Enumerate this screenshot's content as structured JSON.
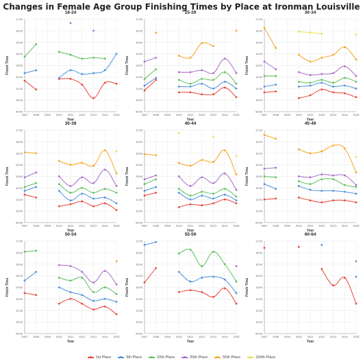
{
  "title": "Changes in Female Age Group Finishing Times by Place at Ironman Louisville",
  "colors": {
    "1st Place": "#e8443a",
    "5th Place": "#4a90d9",
    "10th Place": "#5cbf5c",
    "20th Place": "#a86cc8",
    "50th Place": "#f5a623",
    "100th Place": "#f0e04a"
  },
  "chart_data": [
    {
      "type": "line",
      "title": "18-24",
      "xlabel": "Year",
      "ylabel": "Finish Time",
      "xlim": [
        2007,
        2015
      ],
      "ylim": [
        "09:00",
        "17:00"
      ],
      "x": [
        2007,
        2008,
        2009,
        2010,
        2011,
        2012,
        2013,
        2014,
        2015
      ],
      "yticks": [
        "09:00",
        "10:00",
        "11:00",
        "12:00",
        "13:00",
        "14:00",
        "15:00",
        "16:00",
        "17:00"
      ],
      "series": [
        {
          "name": "1st Place",
          "values": [
            "11:40",
            "10:55",
            null,
            "11:50",
            "11:50",
            "11:20",
            "10:10",
            "11:30",
            "11:25"
          ]
        },
        {
          "name": "5th Place",
          "values": [
            "12:20",
            "12:35",
            null,
            "11:55",
            "12:35",
            "12:15",
            "12:20",
            "12:35",
            "14:00"
          ]
        },
        {
          "name": "10th Place",
          "values": [
            "13:45",
            "14:50",
            null,
            "14:10",
            "13:55",
            "13:35",
            "13:40",
            "13:35",
            null
          ]
        },
        {
          "name": "20th Place",
          "values": [
            null,
            null,
            null,
            null,
            "16:40",
            null,
            "16:00",
            null,
            null
          ]
        },
        {
          "name": "50th Place",
          "values": [
            null,
            null,
            null,
            null,
            null,
            null,
            null,
            null,
            null
          ]
        },
        {
          "name": "100th Place",
          "values": [
            null,
            null,
            null,
            null,
            null,
            null,
            null,
            null,
            null
          ]
        }
      ]
    },
    {
      "type": "line",
      "title": "25-29",
      "xlabel": "Year",
      "ylabel": "Finish Time",
      "xlim": [
        2007,
        2015
      ],
      "ylim": [
        "09:00",
        "17:00"
      ],
      "x": [
        2007,
        2008,
        2009,
        2010,
        2011,
        2012,
        2013,
        2014,
        2015
      ],
      "yticks": [
        "09:00",
        "10:00",
        "11:00",
        "12:00",
        "13:00",
        "14:00",
        "15:00",
        "16:00",
        "17:00"
      ],
      "series": [
        {
          "name": "1st Place",
          "values": [
            "10:50",
            "11:45",
            null,
            "10:40",
            "10:40",
            "10:30",
            "10:30",
            "11:05",
            "10:15"
          ]
        },
        {
          "name": "5th Place",
          "values": [
            "11:15",
            "11:55",
            null,
            "11:10",
            "11:10",
            "11:25",
            "11:00",
            "11:35",
            "11:00"
          ]
        },
        {
          "name": "10th Place",
          "values": [
            "11:50",
            "12:40",
            null,
            "11:45",
            "11:25",
            "11:50",
            "11:45",
            "12:25",
            "11:25"
          ]
        },
        {
          "name": "20th Place",
          "values": [
            "13:20",
            "13:40",
            null,
            "12:25",
            "12:25",
            "12:35",
            "12:20",
            "13:35",
            "12:20"
          ]
        },
        {
          "name": "50th Place",
          "values": [
            null,
            "15:50",
            null,
            "13:50",
            "13:40",
            "14:55",
            "14:40",
            null,
            "16:00"
          ]
        },
        {
          "name": "100th Place",
          "values": [
            null,
            null,
            null,
            null,
            null,
            null,
            null,
            null,
            null
          ]
        }
      ]
    },
    {
      "type": "line",
      "title": "30-34",
      "xlabel": "Year",
      "ylabel": "Finish Time",
      "xlim": [
        2007,
        2015
      ],
      "ylim": [
        "09:00",
        "17:00"
      ],
      "x": [
        2007,
        2008,
        2009,
        2010,
        2011,
        2012,
        2013,
        2014,
        2015
      ],
      "yticks": [
        "09:00",
        "10:00",
        "11:00",
        "12:00",
        "13:00",
        "14:00",
        "15:00",
        "16:00",
        "17:00"
      ],
      "series": [
        {
          "name": "1st Place",
          "values": [
            "10:40",
            "10:45",
            null,
            "10:10",
            "10:25",
            "10:55",
            "10:40",
            "10:35",
            "10:15"
          ]
        },
        {
          "name": "5th Place",
          "values": [
            "11:10",
            "11:20",
            null,
            "11:10",
            "11:15",
            "11:30",
            "11:10",
            "11:15",
            "11:00"
          ]
        },
        {
          "name": "10th Place",
          "values": [
            "12:05",
            "12:05",
            null,
            "11:35",
            "11:30",
            "11:45",
            "11:30",
            "11:55",
            "11:35"
          ]
        },
        {
          "name": "20th Place",
          "values": [
            "13:20",
            "12:40",
            null,
            "12:25",
            "12:10",
            "12:15",
            "12:20",
            "12:55",
            "12:05"
          ]
        },
        {
          "name": "50th Place",
          "values": [
            "16:15",
            "14:30",
            null,
            "13:55",
            "13:20",
            "13:40",
            "13:55",
            "14:35",
            "13:30"
          ]
        },
        {
          "name": "100th Place",
          "values": [
            null,
            null,
            null,
            "15:55",
            "15:50",
            "15:45",
            null,
            null,
            "15:40"
          ]
        }
      ]
    },
    {
      "type": "line",
      "title": "35-39",
      "xlabel": "Year",
      "ylabel": "Finish Time",
      "xlim": [
        2007,
        2015
      ],
      "ylim": [
        "09:00",
        "17:00"
      ],
      "x": [
        2007,
        2008,
        2009,
        2010,
        2011,
        2012,
        2013,
        2014,
        2015
      ],
      "yticks": [
        "09:00",
        "10:00",
        "11:00",
        "12:00",
        "13:00",
        "14:00",
        "15:00",
        "16:00",
        "17:00"
      ],
      "series": [
        {
          "name": "1st Place",
          "values": [
            "11:25",
            "11:10",
            null,
            "10:25",
            "10:35",
            "10:50",
            "10:25",
            "10:40",
            "10:05"
          ]
        },
        {
          "name": "5th Place",
          "values": [
            "11:45",
            "12:05",
            null,
            "11:45",
            "10:55",
            "11:30",
            "11:05",
            "11:10",
            "10:40"
          ]
        },
        {
          "name": "10th Place",
          "values": [
            "12:05",
            "12:25",
            null,
            "12:20",
            "11:35",
            "12:00",
            "11:35",
            "11:55",
            "11:35"
          ]
        },
        {
          "name": "20th Place",
          "values": [
            "12:55",
            "13:20",
            null,
            "13:00",
            "12:10",
            "12:55",
            "12:25",
            "13:35",
            "12:10"
          ]
        },
        {
          "name": "50th Place",
          "values": [
            "15:05",
            "15:00",
            null,
            "14:20",
            "14:00",
            "14:10",
            "13:55",
            "15:15",
            "13:15"
          ]
        },
        {
          "name": "100th Place",
          "values": [
            null,
            null,
            null,
            null,
            null,
            null,
            null,
            null,
            "15:10"
          ]
        }
      ]
    },
    {
      "type": "line",
      "title": "40-44",
      "xlabel": "Year",
      "ylabel": "Finish Time",
      "xlim": [
        2007,
        2015
      ],
      "ylim": [
        "09:00",
        "17:00"
      ],
      "x": [
        2007,
        2008,
        2009,
        2010,
        2011,
        2012,
        2013,
        2014,
        2015
      ],
      "yticks": [
        "09:00",
        "10:00",
        "11:00",
        "12:00",
        "13:00",
        "14:00",
        "15:00",
        "16:00",
        "17:00"
      ],
      "series": [
        {
          "name": "1st Place",
          "values": [
            "11:20",
            "11:35",
            null,
            "10:20",
            "10:35",
            "10:30",
            "10:40",
            "11:00",
            "10:40"
          ]
        },
        {
          "name": "5th Place",
          "values": [
            "11:45",
            "12:05",
            null,
            "11:35",
            "11:00",
            "11:20",
            "11:05",
            "11:25",
            "10:55"
          ]
        },
        {
          "name": "10th Place",
          "values": [
            "12:20",
            "12:45",
            null,
            "11:55",
            "11:20",
            "11:40",
            "11:30",
            "11:55",
            "11:15"
          ]
        },
        {
          "name": "20th Place",
          "values": [
            "12:45",
            "13:05",
            null,
            "13:00",
            "12:10",
            "12:55",
            "12:25",
            "13:15",
            "11:50"
          ]
        },
        {
          "name": "50th Place",
          "values": [
            "14:55",
            "14:50",
            null,
            "14:10",
            "13:55",
            "14:25",
            "14:15",
            "15:15",
            "13:10"
          ]
        },
        {
          "name": "100th Place",
          "values": [
            null,
            null,
            null,
            "16:45",
            null,
            null,
            "16:25",
            null,
            "14:45"
          ]
        }
      ]
    },
    {
      "type": "line",
      "title": "45-49",
      "xlabel": "Year",
      "ylabel": "Finish Time",
      "xlim": [
        2007,
        2015
      ],
      "ylim": [
        "09:00",
        "17:00"
      ],
      "x": [
        2007,
        2008,
        2009,
        2010,
        2011,
        2012,
        2013,
        2014,
        2015
      ],
      "yticks": [
        "09:00",
        "10:00",
        "11:00",
        "12:00",
        "13:00",
        "14:00",
        "15:00",
        "16:00",
        "17:00"
      ],
      "series": [
        {
          "name": "1st Place",
          "values": [
            "11:00",
            "11:05",
            null,
            "11:10",
            "10:55",
            "10:45",
            "10:55",
            "10:55",
            "10:45"
          ]
        },
        {
          "name": "5th Place",
          "values": [
            "12:20",
            "11:55",
            null,
            "12:10",
            "11:50",
            "11:45",
            "11:45",
            "11:40",
            "11:30"
          ]
        },
        {
          "name": "10th Place",
          "values": [
            "13:00",
            "12:55",
            null,
            "12:35",
            "12:20",
            "12:45",
            "12:45",
            "12:15",
            "12:05"
          ]
        },
        {
          "name": "20th Place",
          "values": [
            "13:40",
            "13:45",
            null,
            "13:00",
            "12:55",
            "13:10",
            "13:05",
            "13:05",
            "12:15"
          ]
        },
        {
          "name": "50th Place",
          "values": [
            "16:35",
            "16:15",
            null,
            "15:20",
            "15:00",
            "15:10",
            "15:40",
            "15:25",
            "13:20"
          ]
        },
        {
          "name": "100th Place",
          "values": [
            null,
            null,
            null,
            null,
            null,
            null,
            null,
            null,
            "14:40"
          ]
        }
      ]
    },
    {
      "type": "line",
      "title": "50-54",
      "xlabel": "Year",
      "ylabel": "Finish Time",
      "xlim": [
        2007,
        2015
      ],
      "ylim": [
        "09:00",
        "17:00"
      ],
      "x": [
        2007,
        2008,
        2009,
        2010,
        2011,
        2012,
        2013,
        2014,
        2015
      ],
      "yticks": [
        "09:00",
        "10:00",
        "11:00",
        "12:00",
        "13:00",
        "14:00",
        "15:00",
        "16:00",
        "17:00"
      ],
      "series": [
        {
          "name": "1st Place",
          "values": [
            "12:30",
            "12:20",
            null,
            "11:35",
            "12:00",
            "11:35",
            "11:05",
            "11:20",
            "10:40"
          ]
        },
        {
          "name": "5th Place",
          "values": [
            "13:35",
            "14:20",
            null,
            "13:00",
            "12:35",
            "12:20",
            "11:50",
            "12:00",
            "11:45"
          ]
        },
        {
          "name": "10th Place",
          "values": [
            "16:05",
            "16:10",
            null,
            "13:50",
            "13:35",
            "13:50",
            "12:35",
            "13:00",
            "12:25"
          ]
        },
        {
          "name": "20th Place",
          "values": [
            null,
            null,
            null,
            "14:55",
            "14:50",
            "14:20",
            "13:25",
            "14:25",
            "13:15"
          ]
        },
        {
          "name": "50th Place",
          "values": [
            null,
            null,
            null,
            null,
            null,
            null,
            null,
            null,
            "15:15"
          ]
        },
        {
          "name": "100th Place",
          "values": [
            null,
            null,
            null,
            null,
            null,
            null,
            null,
            null,
            null
          ]
        }
      ]
    },
    {
      "type": "line",
      "title": "55-59",
      "xlabel": "Year",
      "ylabel": "Finish Time",
      "xlim": [
        2007,
        2015
      ],
      "ylim": [
        "09:00",
        "17:00"
      ],
      "x": [
        2007,
        2008,
        2009,
        2010,
        2011,
        2012,
        2013,
        2014,
        2015
      ],
      "yticks": [
        "09:00",
        "10:00",
        "11:00",
        "12:00",
        "13:00",
        "14:00",
        "15:00",
        "16:00",
        "17:00"
      ],
      "series": [
        {
          "name": "1st Place",
          "values": [
            "13:25",
            "14:40",
            null,
            "12:35",
            "12:45",
            "12:35",
            "12:10",
            "12:55",
            "11:35"
          ]
        },
        {
          "name": "5th Place",
          "values": [
            "16:40",
            "16:55",
            null,
            "14:20",
            "13:30",
            "13:50",
            "13:55",
            "13:40",
            "12:30"
          ]
        },
        {
          "name": "10th Place",
          "values": [
            null,
            null,
            null,
            "15:55",
            "16:15",
            "14:50",
            "16:05",
            "15:00",
            "13:30"
          ]
        },
        {
          "name": "20th Place",
          "values": [
            null,
            null,
            null,
            null,
            null,
            null,
            null,
            null,
            "14:50"
          ]
        },
        {
          "name": "50th Place",
          "values": [
            null,
            null,
            null,
            null,
            null,
            null,
            null,
            null,
            null
          ]
        },
        {
          "name": "100th Place",
          "values": [
            null,
            null,
            null,
            null,
            null,
            null,
            null,
            null,
            null
          ]
        }
      ]
    },
    {
      "type": "line",
      "title": "60-64",
      "xlabel": "Year",
      "ylabel": "Finish Time",
      "xlim": [
        2007,
        2015
      ],
      "ylim": [
        "09:00",
        "17:00"
      ],
      "x": [
        2007,
        2008,
        2009,
        2010,
        2011,
        2012,
        2013,
        2014,
        2015
      ],
      "yticks": [
        "09:00",
        "10:00",
        "11:00",
        "12:00",
        "13:00",
        "14:00",
        "15:00",
        "16:00",
        "17:00"
      ],
      "series": [
        {
          "name": "1st Place",
          "values": [
            "16:25",
            null,
            null,
            "16:30",
            null,
            "14:35",
            "13:10",
            "13:50",
            "11:35"
          ]
        },
        {
          "name": "5th Place",
          "values": [
            null,
            null,
            null,
            null,
            null,
            "16:40",
            null,
            null,
            "13:55"
          ]
        },
        {
          "name": "10th Place",
          "values": [
            null,
            null,
            null,
            null,
            null,
            null,
            null,
            null,
            null
          ]
        },
        {
          "name": "20th Place",
          "values": [
            null,
            null,
            null,
            null,
            null,
            null,
            null,
            null,
            "15:15"
          ]
        },
        {
          "name": "50th Place",
          "values": [
            null,
            null,
            null,
            null,
            null,
            null,
            null,
            null,
            null
          ]
        },
        {
          "name": "100th Place",
          "values": [
            null,
            null,
            null,
            null,
            null,
            null,
            null,
            null,
            null
          ]
        }
      ]
    }
  ]
}
